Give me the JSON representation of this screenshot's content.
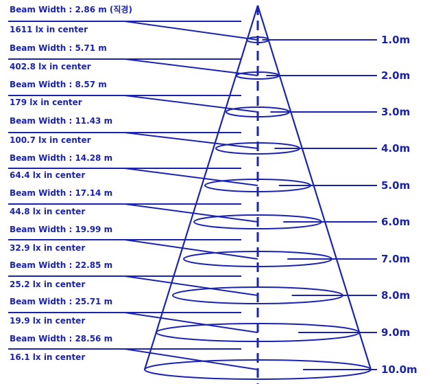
{
  "colors": {
    "line": "#1a22b0",
    "text": "#1a22b0"
  },
  "levels": [
    {
      "beam": "Beam Width : 2.86 m (직경)",
      "lux": "1611 lx in center",
      "distance": "1.0m"
    },
    {
      "beam": "Beam Width : 5.71 m",
      "lux": "402.8 lx in center",
      "distance": "2.0m"
    },
    {
      "beam": "Beam Width : 8.57 m",
      "lux": "179 lx in center",
      "distance": "3.0m"
    },
    {
      "beam": "Beam Width : 11.43 m",
      "lux": "100.7 lx in center",
      "distance": "4.0m"
    },
    {
      "beam": "Beam Width : 14.28 m",
      "lux": "64.4 lx in center",
      "distance": "5.0m"
    },
    {
      "beam": "Beam Width : 17.14 m",
      "lux": "44.8 lx in center",
      "distance": "6.0m"
    },
    {
      "beam": "Beam Width : 19.99 m",
      "lux": "32.9 lx in center",
      "distance": "7.0m"
    },
    {
      "beam": "Beam Width : 22.85 m",
      "lux": "25.2 lx in center",
      "distance": "8.0m"
    },
    {
      "beam": "Beam Width : 25.71 m",
      "lux": "19.9 lx in center",
      "distance": "9.0m"
    },
    {
      "beam": "Beam Width : 28.56 m",
      "lux": "16.1 lx in center",
      "distance": "10.0m"
    }
  ]
}
